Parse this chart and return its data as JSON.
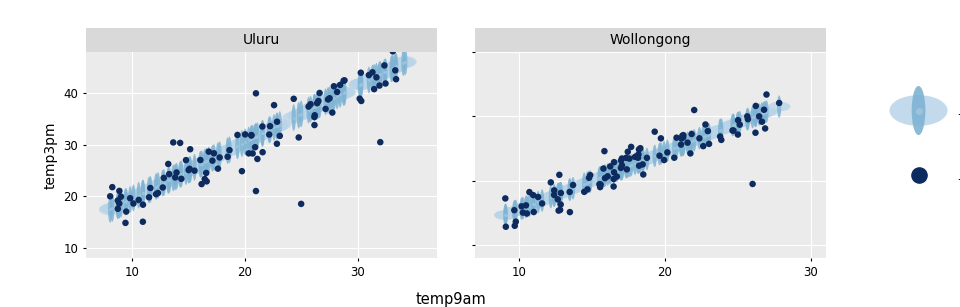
{
  "title_uluru": "Uluru",
  "title_wollongong": "Wollongong",
  "xlabel": "temp9am",
  "ylabel": "temp3pm",
  "panel_bg": "#ebebeb",
  "outer_bg": "#ffffff",
  "strip_bg": "#d9d9d9",
  "dot_color": "#0d2b5e",
  "pred_wide_color": "#b8d4e8",
  "pred_narrow_color": "#7fb3d3",
  "pred_dot_color": "#9cc4dc",
  "uluru_xlim": [
    6,
    37
  ],
  "uluru_ylim": [
    8,
    48
  ],
  "wollongong_xlim": [
    7,
    31
  ],
  "wollongong_ylim": [
    8,
    35
  ],
  "xticks_uluru": [
    10,
    20,
    30
  ],
  "xticks_wollongong": [
    10,
    20,
    30
  ],
  "yticks": [
    10,
    20,
    30,
    40
  ],
  "uluru_slope": 1.1,
  "uluru_intercept": 8.5,
  "wollongong_slope": 0.9,
  "wollongong_intercept": 6.5
}
